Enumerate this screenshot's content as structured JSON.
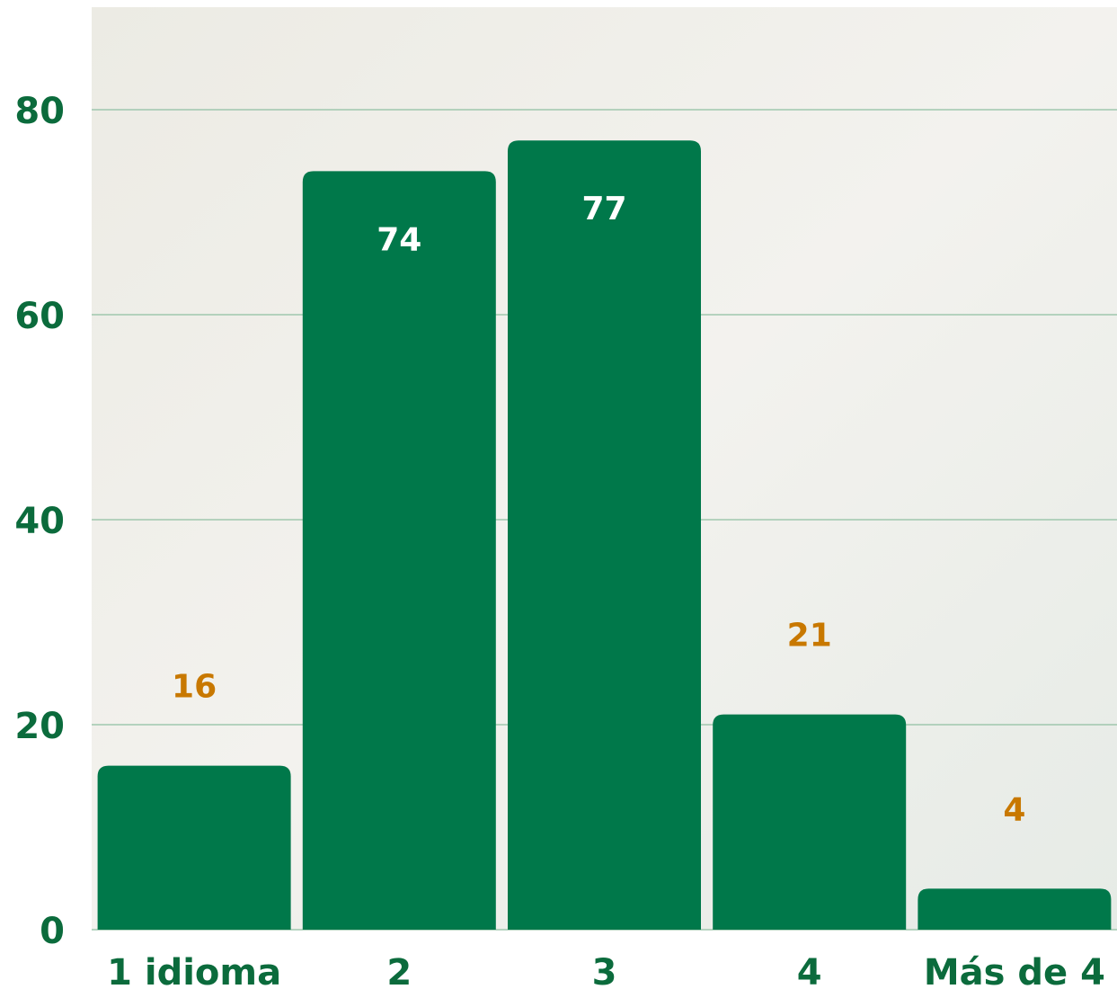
{
  "chart_data": {
    "type": "bar",
    "categories": [
      "1 idioma",
      "2",
      "3",
      "4",
      "Más de 4"
    ],
    "values": [
      16,
      74,
      77,
      21,
      4
    ],
    "color": "#00784a",
    "ylim": [
      0,
      90
    ],
    "yticks": [
      0,
      20,
      40,
      60,
      80
    ],
    "grid": true
  }
}
